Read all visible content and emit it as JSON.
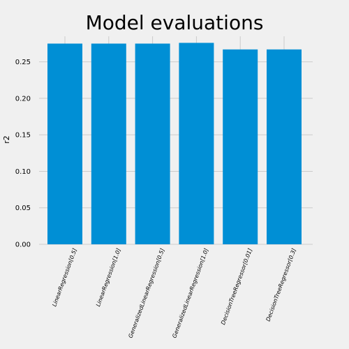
{
  "chart_data": {
    "type": "bar",
    "title": "Model evaluations",
    "xlabel": "",
    "ylabel": "r2",
    "categories": [
      "LinearRegression[0.5]",
      "LinearRegression[1.0]",
      "GeneralizedLinearRegression[0.5]",
      "GeneralizedLinearRegression[1.0]",
      "DecisionTreeRegressor[0.01]",
      "DecisionTreeRegressor[0.3]"
    ],
    "values": [
      0.275,
      0.275,
      0.275,
      0.276,
      0.267,
      0.267
    ],
    "ylim": [
      0,
      0.285
    ],
    "yticks": [
      "0.00",
      "0.05",
      "0.10",
      "0.15",
      "0.20",
      "0.25"
    ],
    "grid": true,
    "bar_color": "#008fd5",
    "background": "#f0f0f0"
  }
}
